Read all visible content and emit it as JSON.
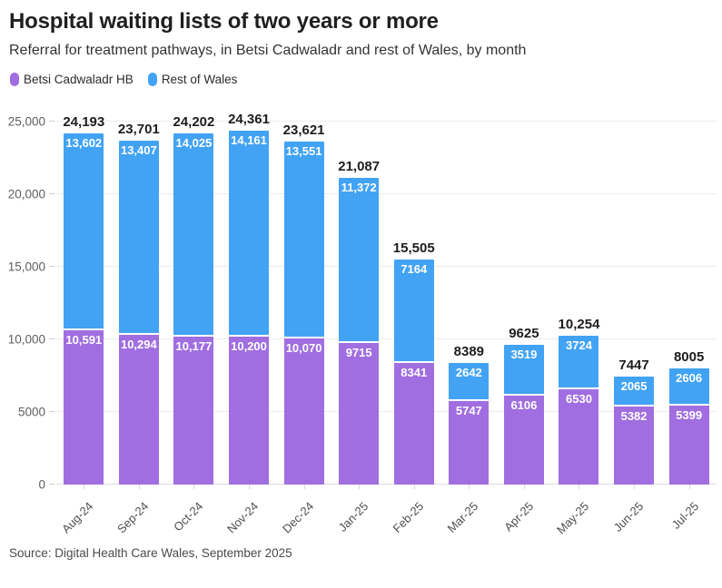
{
  "header": {
    "title": "Hospital waiting lists of two years or more",
    "subtitle": "Referral for treatment pathways, in Betsi Cadwaladr and rest of Wales, by month"
  },
  "footer": {
    "source": "Source: Digital Health Care Wales, September 2025"
  },
  "chart_data": {
    "type": "bar",
    "variant": "stacked",
    "title": "Hospital waiting lists of two years or more",
    "xlabel": "",
    "ylabel": "",
    "ylim": [
      0,
      25000
    ],
    "grid": true,
    "legend_position": "top-left",
    "categories": [
      "Aug-24",
      "Sep-24",
      "Oct-24",
      "Nov-24",
      "Dec-24",
      "Jan-25",
      "Feb-25",
      "Mar-25",
      "Apr-25",
      "May-25",
      "Jun-25",
      "Jul-25"
    ],
    "series": [
      {
        "name": "Betsi Cadwaladr HB",
        "color": "#a06ee0",
        "values": [
          10591,
          10294,
          10177,
          10200,
          10070,
          9715,
          8341,
          5747,
          6106,
          6530,
          5382,
          5399
        ],
        "labels": [
          "10,591",
          "10,294",
          "10,177",
          "10,200",
          "10,070",
          "9715",
          "8341",
          "5747",
          "6106",
          "6530",
          "5382",
          "5399"
        ]
      },
      {
        "name": "Rest of Wales",
        "color": "#42a3f5",
        "values": [
          13602,
          13407,
          14025,
          14161,
          13551,
          11372,
          7164,
          2642,
          3519,
          3724,
          2065,
          2606
        ],
        "labels": [
          "13,602",
          "13,407",
          "14,025",
          "14,161",
          "13,551",
          "11,372",
          "7164",
          "2642",
          "3519",
          "3724",
          "2065",
          "2606"
        ]
      }
    ],
    "totals": [
      24193,
      23701,
      24202,
      24361,
      23621,
      21087,
      15505,
      8389,
      9625,
      10254,
      7447,
      8005
    ],
    "total_labels": [
      "24,193",
      "23,701",
      "24,202",
      "24,361",
      "23,621",
      "21,087",
      "15,505",
      "8389",
      "9625",
      "10,254",
      "7447",
      "8005"
    ],
    "y_ticks": [
      {
        "value": 0,
        "label": "0"
      },
      {
        "value": 5000,
        "label": "5000"
      },
      {
        "value": 10000,
        "label": "10,000"
      },
      {
        "value": 15000,
        "label": "15,000"
      },
      {
        "value": 20000,
        "label": "20,000"
      },
      {
        "value": 25000,
        "label": "25,000"
      }
    ]
  }
}
